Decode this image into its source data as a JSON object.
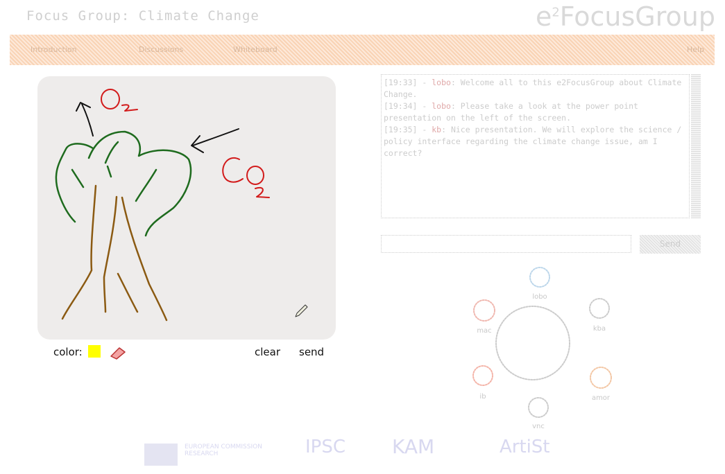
{
  "header": {
    "title": "Focus Group: Climate Change",
    "logo": {
      "prefix": "e",
      "sup": "2",
      "name": "FocusGroup"
    }
  },
  "nav": {
    "items": [
      "Introduction",
      "Discussions",
      "Whiteboard"
    ],
    "help": "Help"
  },
  "whiteboard": {
    "color_label": "color:",
    "clear": "clear",
    "send": "send"
  },
  "chat": {
    "messages": [
      {
        "time": "[19:33] - ",
        "user": "lobo",
        "text": ": Welcome all to this e2FocusGroup about Climate Change."
      },
      {
        "time": "[19:34] - ",
        "user": "lobo",
        "text": ": Please take a look at the power point presentation on the left of the screen."
      },
      {
        "time": "[19:35] - ",
        "user": "kb",
        "text": ": Nice presentation. We will explore the science / policy interface regarding the climate change issue, am I correct?"
      }
    ],
    "send_button": "Send"
  },
  "participants": [
    "lobo",
    "kba",
    "amor",
    "vnc",
    "ib",
    "mac"
  ],
  "footer": {
    "logos": [
      "EUROPEAN COMMISSION RESEARCH",
      "IPSC",
      "KAM",
      "ArtiSt"
    ]
  }
}
